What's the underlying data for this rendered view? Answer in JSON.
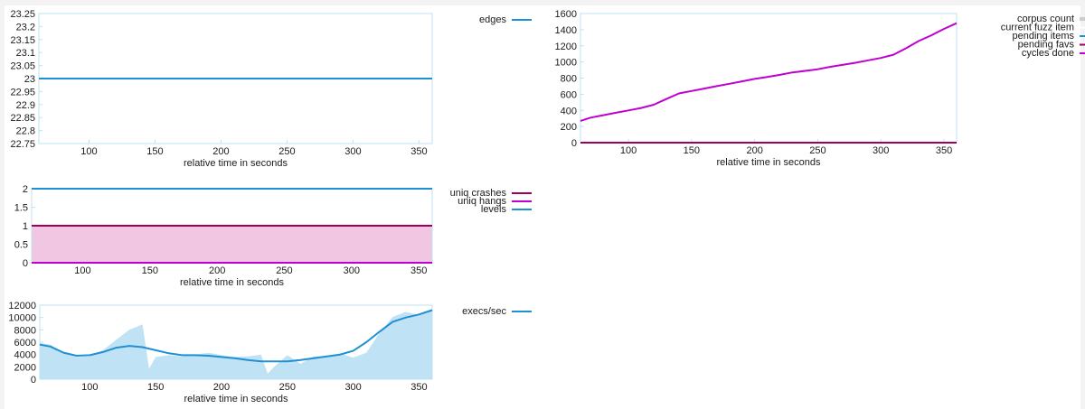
{
  "chart_data": [
    {
      "type": "line",
      "xlabel": "relative time in seconds",
      "x_ticks": [
        100,
        150,
        200,
        250,
        300,
        350
      ],
      "xlim": [
        62,
        360
      ],
      "y_ticks": [
        22.75,
        22.8,
        22.85,
        22.9,
        22.95,
        23,
        23.05,
        23.1,
        23.15,
        23.2,
        23.25
      ],
      "ylim": [
        22.75,
        23.25
      ],
      "legend_position": "top-right",
      "series": [
        {
          "name": "edges",
          "color": "#1f8fd6",
          "x": [
            62,
            360
          ],
          "y": [
            23,
            23
          ]
        }
      ]
    },
    {
      "type": "line",
      "xlabel": "relative time in seconds",
      "x_ticks": [
        100,
        150,
        200,
        250,
        300,
        350
      ],
      "xlim": [
        62,
        360
      ],
      "y_ticks": [
        0,
        200,
        400,
        600,
        800,
        1000,
        1200,
        1400,
        1600
      ],
      "ylim": [
        0,
        1600
      ],
      "legend_position": "top-right",
      "series": [
        {
          "name": "corpus count",
          "color": "#cccccc",
          "x": [
            62,
            360
          ],
          "y": [
            0,
            0
          ]
        },
        {
          "name": "current fuzz item",
          "color": "#ffffff",
          "x": [
            62,
            360
          ],
          "y": [
            0,
            0
          ]
        },
        {
          "name": "pending items",
          "color": "#1f8fd6",
          "x": [
            62,
            360
          ],
          "y": [
            0,
            0
          ]
        },
        {
          "name": "pending favs",
          "color": "#a0005a",
          "x": [
            62,
            360
          ],
          "y": [
            0,
            0
          ]
        },
        {
          "name": "cycles done",
          "color": "#c000d0",
          "x": [
            62,
            70,
            80,
            90,
            100,
            110,
            120,
            130,
            140,
            150,
            160,
            170,
            180,
            190,
            200,
            210,
            220,
            230,
            240,
            250,
            260,
            270,
            280,
            290,
            300,
            310,
            320,
            330,
            340,
            350,
            360
          ],
          "y": [
            270,
            310,
            340,
            370,
            400,
            430,
            470,
            540,
            610,
            640,
            670,
            700,
            730,
            760,
            790,
            815,
            840,
            870,
            890,
            910,
            940,
            965,
            990,
            1020,
            1050,
            1090,
            1170,
            1260,
            1330,
            1410,
            1480
          ]
        }
      ]
    },
    {
      "type": "area",
      "xlabel": "relative time in seconds",
      "x_ticks": [
        100,
        150,
        200,
        250,
        300,
        350
      ],
      "xlim": [
        62,
        360
      ],
      "y_ticks": [
        0,
        0.5,
        1,
        1.5,
        2
      ],
      "ylim": [
        0,
        2
      ],
      "legend_position": "top-right",
      "series": [
        {
          "name": "uniq crashes",
          "color": "#a0005a",
          "x": [
            62,
            360
          ],
          "y": [
            1,
            1
          ]
        },
        {
          "name": "uniq hangs",
          "color": "#c000d0",
          "x": [
            62,
            360
          ],
          "y": [
            0,
            0
          ]
        },
        {
          "name": "levels",
          "color": "#1f8fd6",
          "x": [
            62,
            360
          ],
          "y": [
            2,
            2
          ]
        }
      ]
    },
    {
      "type": "area",
      "xlabel": "relative time in seconds",
      "x_ticks": [
        100,
        150,
        200,
        250,
        300,
        350
      ],
      "xlim": [
        62,
        360
      ],
      "y_ticks": [
        0,
        2000,
        4000,
        6000,
        8000,
        10000,
        12000
      ],
      "ylim": [
        0,
        12000
      ],
      "legend_position": "top-right",
      "series": [
        {
          "name": "execs/sec",
          "color": "#1f8fd6",
          "x": [
            62,
            70,
            80,
            90,
            100,
            110,
            120,
            130,
            140,
            150,
            160,
            170,
            180,
            190,
            200,
            210,
            220,
            230,
            240,
            250,
            260,
            270,
            280,
            290,
            300,
            310,
            320,
            330,
            340,
            350,
            360
          ],
          "y": [
            5600,
            5300,
            4300,
            3800,
            3900,
            4400,
            5100,
            5400,
            5200,
            4700,
            4200,
            3900,
            3900,
            3800,
            3600,
            3400,
            3100,
            2900,
            2900,
            2900,
            3100,
            3400,
            3700,
            4000,
            4600,
            6000,
            7700,
            9300,
            10000,
            10500,
            11200
          ]
        },
        {
          "name": "",
          "color": "#bfe3f5",
          "x": [
            62,
            70,
            80,
            90,
            100,
            110,
            120,
            130,
            140,
            145,
            150,
            160,
            170,
            180,
            190,
            200,
            210,
            220,
            230,
            235,
            240,
            250,
            260,
            270,
            280,
            290,
            300,
            310,
            320,
            330,
            340,
            350,
            360
          ],
          "y": [
            5900,
            5600,
            4200,
            3600,
            3700,
            4700,
            6400,
            8000,
            8900,
            1700,
            3600,
            3900,
            3700,
            4000,
            4300,
            3900,
            3600,
            3700,
            4000,
            900,
            2000,
            3900,
            2500,
            3700,
            3700,
            4200,
            3500,
            4300,
            7500,
            10100,
            10900,
            10400,
            11200
          ]
        }
      ]
    }
  ]
}
